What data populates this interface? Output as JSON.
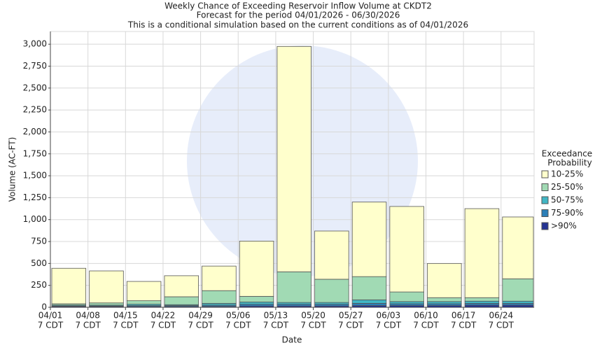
{
  "chart_data": {
    "type": "stacked_bar",
    "title": [
      "Weekly Chance of Exceeding Reservoir Inflow Volume at CKDT2",
      "Forecast for the period 04/01/2026 - 06/30/2026",
      "This is a conditional simulation based on the current conditions as of 04/01/2026"
    ],
    "x_label": "Date",
    "y_label": "Volume (AC-FT)",
    "categories": [
      "04/01",
      "04/08",
      "04/15",
      "04/22",
      "04/29",
      "05/06",
      "05/13",
      "05/20",
      "05/27",
      "06/03",
      "06/10",
      "06/17",
      "06/24"
    ],
    "tick_suffix": "7 CDT",
    "legend_title": [
      "Exceedance",
      "Probability"
    ],
    "series": [
      {
        "name": ">90%",
        "color": "#253494",
        "values": [
          10,
          10,
          10,
          10,
          10,
          15,
          15,
          15,
          20,
          20,
          20,
          25,
          25
        ]
      },
      {
        "name": "75-90%",
        "color": "#2c7fb8",
        "values": [
          5,
          5,
          10,
          10,
          15,
          20,
          20,
          20,
          25,
          20,
          20,
          20,
          20
        ]
      },
      {
        "name": "50-75%",
        "color": "#41b6c4",
        "values": [
          10,
          10,
          15,
          10,
          20,
          25,
          20,
          20,
          40,
          25,
          25,
          25,
          25
        ]
      },
      {
        "name": "25-50%",
        "color": "#a1dab4",
        "values": [
          15,
          25,
          40,
          90,
          145,
          65,
          350,
          265,
          265,
          110,
          45,
          40,
          255
        ]
      },
      {
        "name": "10-25%",
        "color": "#ffffcc",
        "values": [
          405,
          365,
          220,
          240,
          280,
          630,
          2570,
          550,
          850,
          975,
          390,
          1015,
          705
        ]
      }
    ],
    "ylim": [
      0,
      3145
    ],
    "yticks": [
      0,
      250,
      500,
      750,
      {
        "value": 1000,
        "label": "1,000"
      },
      {
        "value": 1250,
        "label": "1,250"
      },
      {
        "value": 1500,
        "label": "1,500"
      },
      {
        "value": 1750,
        "label": "1,750"
      },
      {
        "value": 2000,
        "label": "2,000"
      },
      {
        "value": 2250,
        "label": "2,250"
      },
      {
        "value": 2500,
        "label": "2,500"
      },
      {
        "value": 2750,
        "label": "2,750"
      },
      {
        "value": 3000,
        "label": "3,000"
      }
    ],
    "grid": true
  }
}
